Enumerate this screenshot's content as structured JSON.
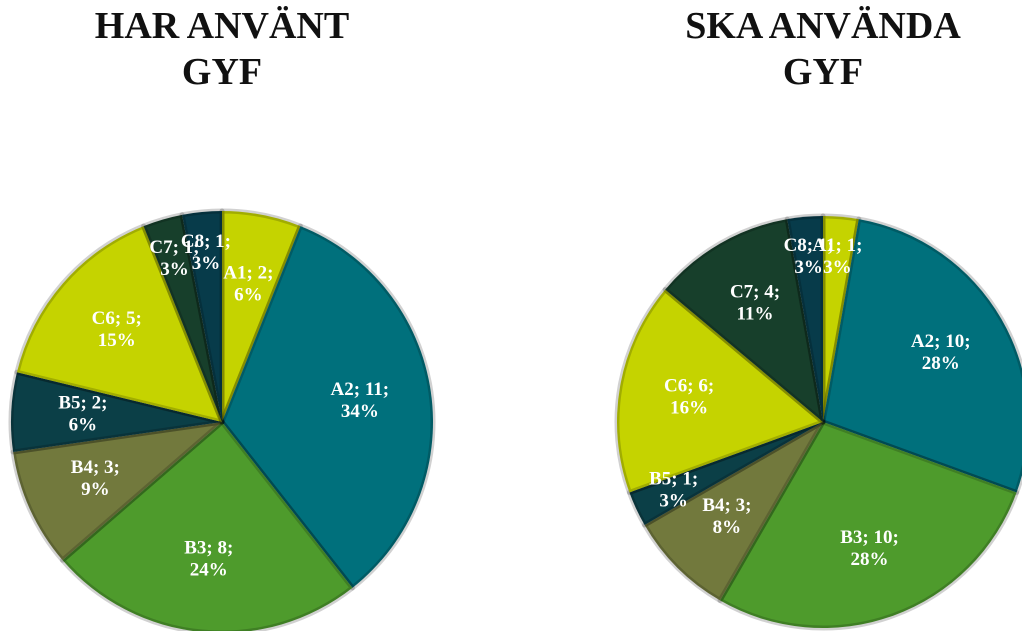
{
  "chart_data": [
    {
      "type": "pie",
      "title": "HAR ANVÄNT GYF",
      "categories": [
        "A1",
        "A2",
        "B3",
        "B4",
        "B5",
        "C6",
        "C7",
        "C8"
      ],
      "values": [
        2,
        11,
        8,
        3,
        2,
        5,
        1,
        1
      ],
      "value_labels": [
        "A1; 2; 6%",
        "A2; 11; 34%",
        "B3; 8; 24%",
        "B4; 3; 9%",
        "B5; 2; 6%",
        "C6; 5; 15%",
        "C7; 1; 3%",
        "C8; 1; 3%"
      ],
      "colors": [
        "#c5d300",
        "#00707c",
        "#4e9b2c",
        "#72793d",
        "#0b3f47",
        "#c5d300",
        "#173f2b",
        "#073b4a"
      ]
    },
    {
      "type": "pie",
      "title": "SKA ANVÄNDA GYF",
      "categories": [
        "A1",
        "A2",
        "B3",
        "B4",
        "B5",
        "C6",
        "C7",
        "C8"
      ],
      "values": [
        1,
        10,
        10,
        3,
        1,
        6,
        4,
        1
      ],
      "value_labels": [
        "A1; 1; 3%",
        "A2; 10; 28%",
        "B3; 10; 28%",
        "B4; 3; 8%",
        "B5; 1; 3%",
        "C6; 6; 16%",
        "C7; 4; 11%",
        "C8; 1; 3%"
      ],
      "colors": [
        "#c5d300",
        "#00707c",
        "#4e9b2c",
        "#72793d",
        "#0b3f47",
        "#c5d300",
        "#173f2b",
        "#073b4a"
      ]
    }
  ]
}
